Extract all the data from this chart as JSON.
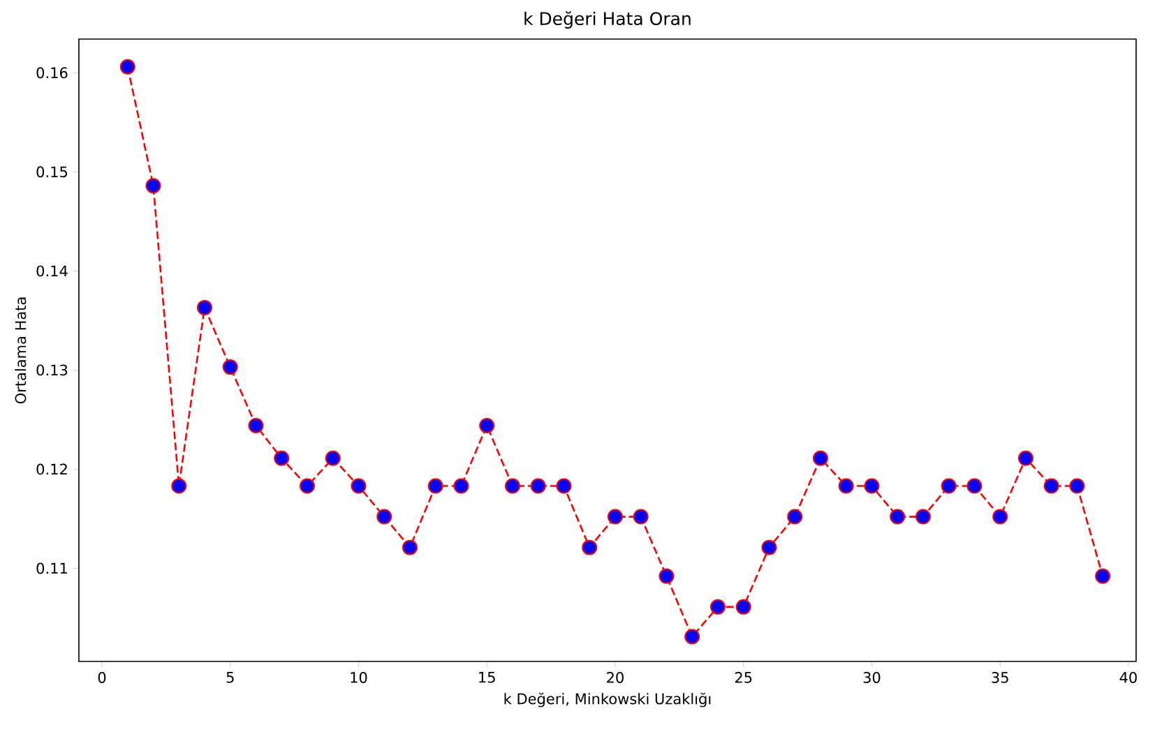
{
  "chart_data": {
    "type": "line",
    "title": "k Değeri Hata Oran",
    "xlabel": "k Değeri, Minkowski Uzaklığı",
    "ylabel": "Ortalama Hata",
    "x": [
      1,
      2,
      3,
      4,
      5,
      6,
      7,
      8,
      9,
      10,
      11,
      12,
      13,
      14,
      15,
      16,
      17,
      18,
      19,
      20,
      21,
      22,
      23,
      24,
      25,
      26,
      27,
      28,
      29,
      30,
      31,
      32,
      33,
      34,
      35,
      36,
      37,
      38,
      39
    ],
    "series": [
      {
        "color": "#ff0000",
        "values": [
          0.1606,
          0.1486,
          0.1183,
          0.1363,
          0.1303,
          0.1244,
          0.1211,
          0.1183,
          0.1211,
          0.1183,
          0.1152,
          0.1121,
          0.1183,
          0.1183,
          0.1244,
          0.1183,
          0.1183,
          0.1183,
          0.1121,
          0.1152,
          0.1152,
          0.1092,
          0.1031,
          0.1061,
          0.1061,
          0.1121,
          0.1152,
          0.1211,
          0.1183,
          0.1183,
          0.1152,
          0.1152,
          0.1183,
          0.1183,
          0.1152,
          0.1211,
          0.1183,
          0.1183,
          0.1092
        ]
      }
    ],
    "xlim": [
      -0.9,
      40.3
    ],
    "ylim": [
      0.1006,
      0.1634
    ],
    "xticks": [
      0,
      5,
      10,
      15,
      20,
      25,
      30,
      35,
      40
    ],
    "yticks": [
      0.11,
      0.12,
      0.13,
      0.14,
      0.15,
      0.16
    ],
    "marker": "circle",
    "line_style": "dashed",
    "grid": false
  }
}
